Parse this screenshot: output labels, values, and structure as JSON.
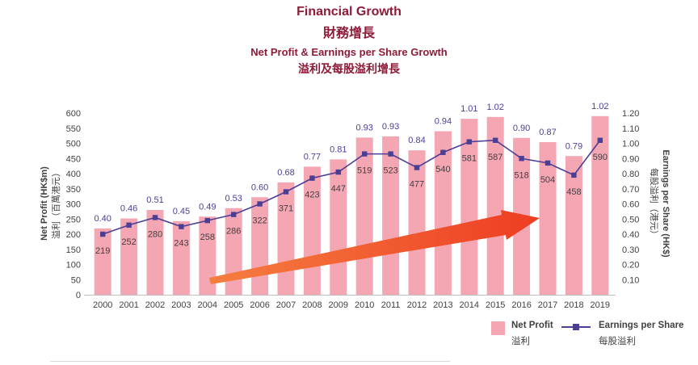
{
  "header": {
    "title_en": "Financial Growth",
    "title_zh": "財務增長",
    "subtitle_en": "Net Profit & Earnings per Share Growth",
    "subtitle_zh": "溢利及每股溢利增長"
  },
  "axes": {
    "left_en": "Net Profit (HK$m)",
    "left_zh": "溢利（百萬港元）",
    "right_en": "Earnings per Share (HK$)",
    "right_zh": "每股溢利（港元）"
  },
  "legend": {
    "bar_en": "Net Profit",
    "bar_zh": "溢利",
    "line_en": "Earnings per Share",
    "line_zh": "每股溢利"
  },
  "colors": {
    "title": "#8e1b38",
    "bar": "#f4a6b2",
    "line": "#4b3e95",
    "arrow": "#f04e23",
    "text": "#414042"
  },
  "chart_data": {
    "type": "bar+line",
    "title": "Financial Growth 財務增長",
    "subtitle": "Net Profit & Earnings per Share Growth 溢利及每股溢利增長",
    "categories": [
      "2000",
      "2001",
      "2002",
      "2003",
      "2004",
      "2005",
      "2006",
      "2007",
      "2008",
      "2009",
      "2010",
      "2011",
      "2012",
      "2013",
      "2014",
      "2015",
      "2016",
      "2017",
      "2018",
      "2019"
    ],
    "series": [
      {
        "name": "Net Profit 溢利",
        "type": "bar",
        "axis": "left",
        "color": "#f4a6b2",
        "values": [
          219,
          252,
          280,
          243,
          258,
          286,
          322,
          371,
          423,
          447,
          519,
          523,
          477,
          540,
          581,
          587,
          518,
          504,
          458,
          590
        ]
      },
      {
        "name": "Earnings per Share 每股溢利",
        "type": "line",
        "axis": "right",
        "color": "#4b3e95",
        "values": [
          0.4,
          0.46,
          0.51,
          0.45,
          0.49,
          0.53,
          0.6,
          0.68,
          0.77,
          0.81,
          0.93,
          0.93,
          0.84,
          0.94,
          1.01,
          1.02,
          0.9,
          0.87,
          0.79,
          1.02
        ]
      }
    ],
    "left_axis": {
      "label": "Net Profit (HK$m) 溢利（百萬港元）",
      "min": 0,
      "max": 600,
      "step": 50
    },
    "right_axis": {
      "label": "Earnings per Share (HK$) 每股溢利（港元）",
      "min": 0,
      "max": 1.2,
      "step": 0.1
    },
    "grid": false,
    "legend_position": "bottom-right",
    "annotations": [
      {
        "type": "arrow",
        "color": "#f04e23",
        "from_year": "2004",
        "to_year": "2016",
        "meaning": "upward growth trend"
      }
    ]
  }
}
